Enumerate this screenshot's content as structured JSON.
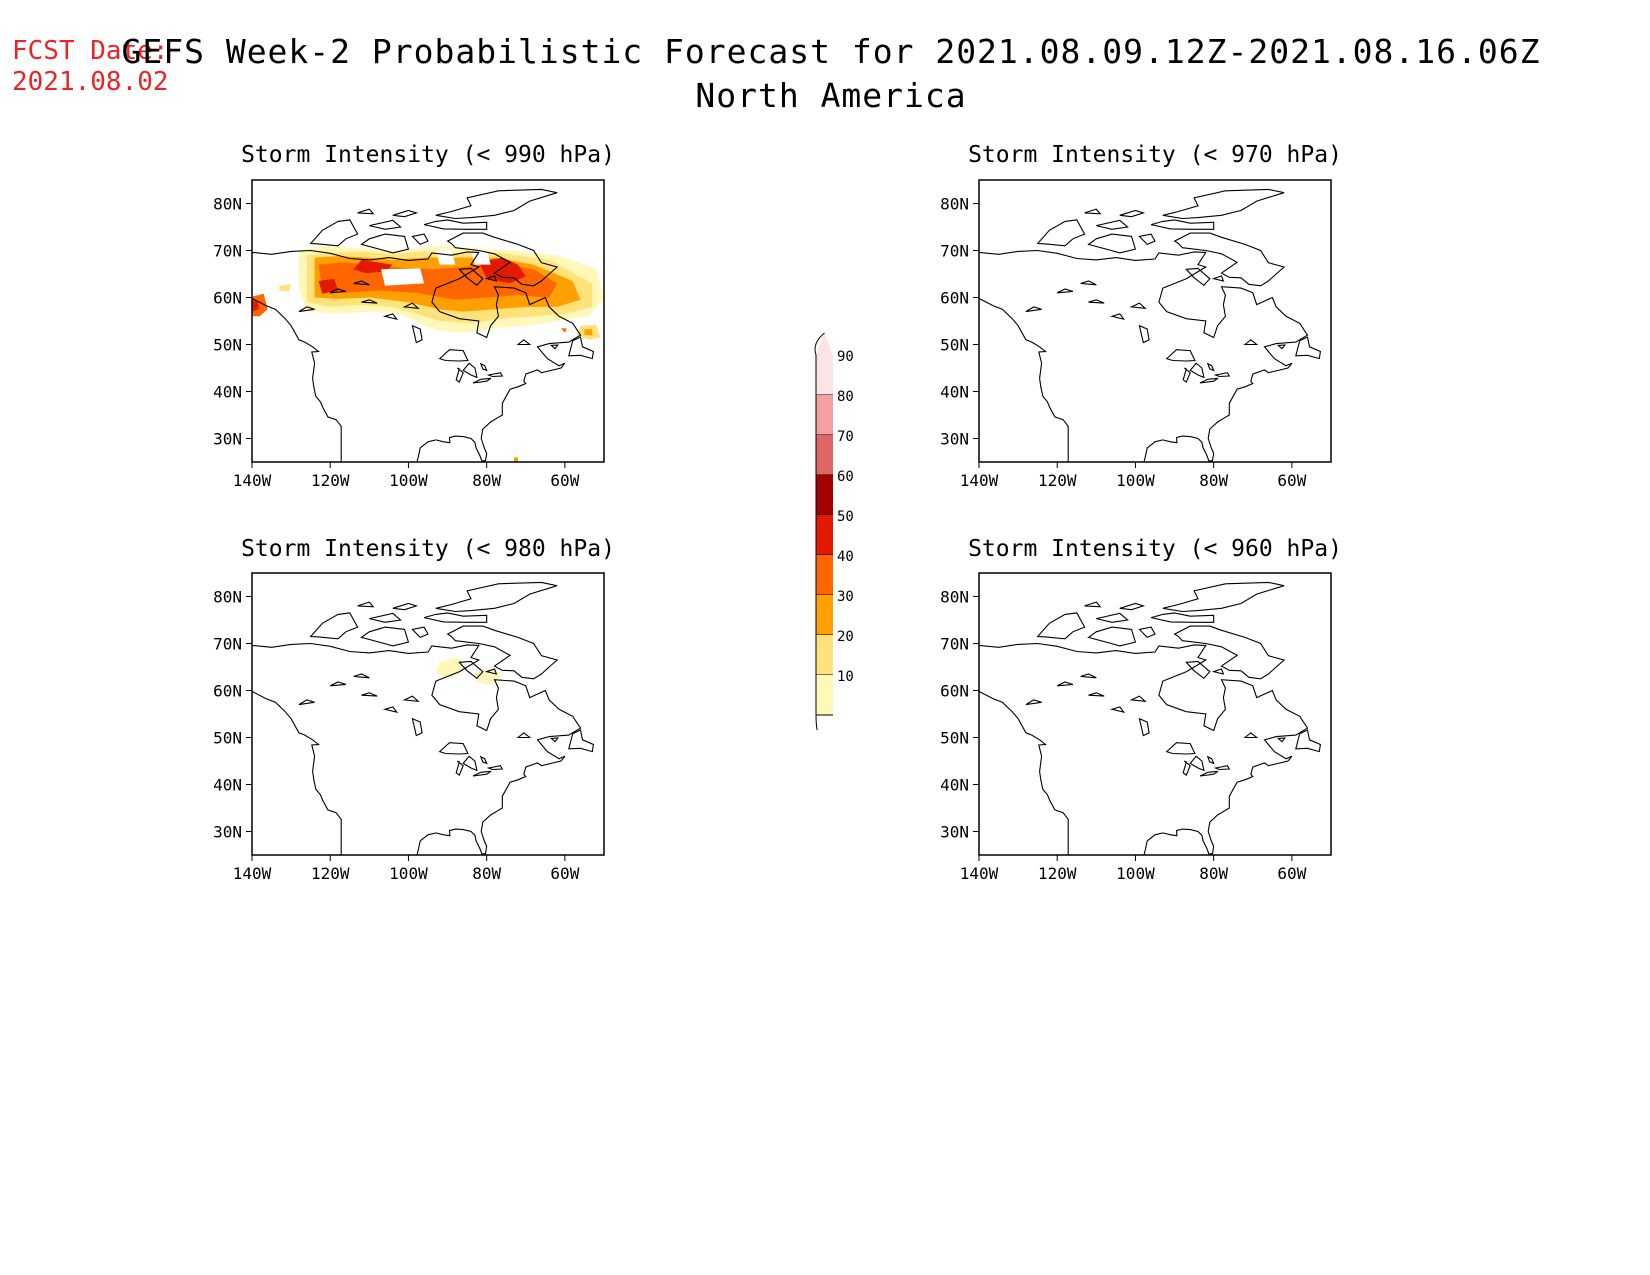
{
  "header": {
    "fcst_label": "FCST Date:",
    "fcst_date": "2021.08.02",
    "title_line1": "GEFS Week-2 Probabilistic Forecast for 2021.08.09.12Z-2021.08.16.06Z",
    "title_line2": "North America"
  },
  "axes": {
    "lat_labels": [
      "80N",
      "70N",
      "60N",
      "50N",
      "40N",
      "30N"
    ],
    "lat_values": [
      80,
      70,
      60,
      50,
      40,
      30
    ],
    "lon_labels": [
      "140W",
      "120W",
      "100W",
      "80W",
      "60W"
    ],
    "lon_values": [
      -140,
      -120,
      -100,
      -80,
      -60
    ],
    "lon_range": [
      -140,
      -50
    ],
    "lat_range": [
      25,
      85
    ]
  },
  "panels": [
    {
      "title": "Storm Intensity (< 990 hPa)",
      "threshold_hpa": 990,
      "has_shading": true
    },
    {
      "title": "Storm Intensity (< 970 hPa)",
      "threshold_hpa": 970,
      "has_shading": false
    },
    {
      "title": "Storm Intensity (< 980 hPa)",
      "threshold_hpa": 980,
      "has_shading": true
    },
    {
      "title": "Storm Intensity (< 960 hPa)",
      "threshold_hpa": 960,
      "has_shading": false
    }
  ],
  "colorbar": {
    "labels": [
      "90",
      "80",
      "70",
      "60",
      "50",
      "40",
      "30",
      "20",
      "10"
    ],
    "colors": [
      "#fde4e4",
      "#f4a0a0",
      "#e06666",
      "#a30000",
      "#e31a00",
      "#ff6600",
      "#ff9f00",
      "#ffe27a",
      "#fff8b8"
    ]
  }
}
